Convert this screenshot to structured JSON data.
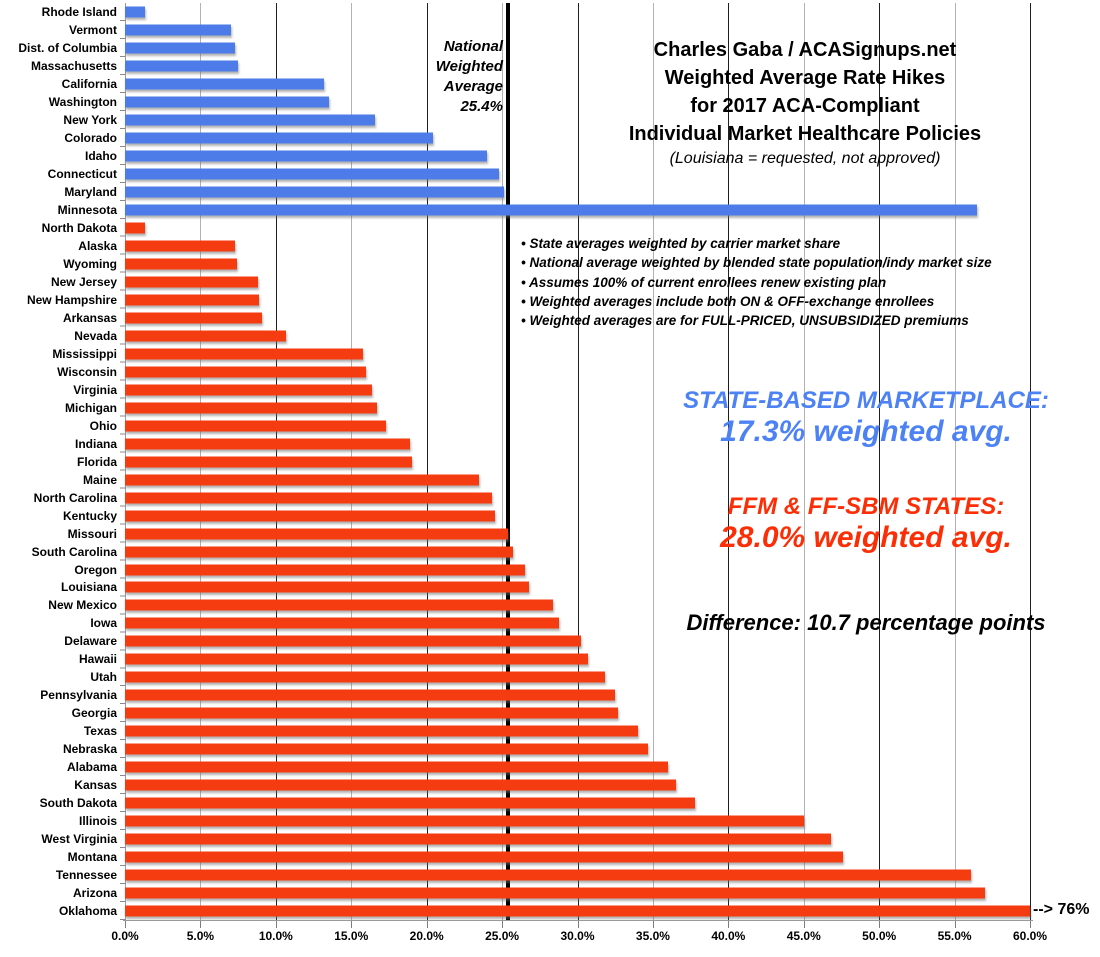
{
  "title": {
    "lines": [
      "Charles Gaba / ACASignups.net",
      "Weighted Average Rate Hikes",
      "for 2017 ACA-Compliant",
      "Individual Market Healthcare Policies"
    ],
    "subtitle": "(Louisiana = requested, not approved)"
  },
  "national_note": {
    "lines": [
      "National",
      "Weighted",
      "Average",
      "25.4%"
    ]
  },
  "notes": [
    "State averages weighted by carrier market share",
    "National average weighted by blended state population/indy market size",
    "Assumes 100% of current enrollees renew existing plan",
    "Weighted averages include both ON & OFF-exchange enrollees",
    "Weighted averages are for FULL-PRICED, UNSUBSIDIZED premiums"
  ],
  "annotations": {
    "sbm": {
      "heading": "STATE-BASED MARKETPLACE:",
      "value_line": "17.3% weighted avg.",
      "color": "#4d82f5"
    },
    "ffm": {
      "heading": "FFM & FF-SBM STATES:",
      "value_line": "28.0% weighted avg.",
      "color": "#fb2e06"
    },
    "difference": "Difference: 10.7 percentage points"
  },
  "oklahoma_callout": "--> 76%",
  "x_axis": {
    "ticks": [
      "0.0%",
      "5.0%",
      "10.0%",
      "15.0%",
      "20.0%",
      "25.0%",
      "30.0%",
      "35.0%",
      "40.0%",
      "45.0%",
      "50.0%",
      "55.0%",
      "60.0%"
    ]
  },
  "colors": {
    "sbm_bar": "#4d7ce8",
    "ffm_bar": "#f53b10",
    "national_line": "#000000",
    "minor_gridline": "#b2b2b2",
    "major_gridline": "#1f1f1f"
  },
  "chart_data": {
    "type": "bar",
    "orientation": "horizontal",
    "title": "Charles Gaba / ACASignups.net Weighted Average Rate Hikes for 2017 ACA-Compliant Individual Market Healthcare Policies",
    "xlim": [
      0,
      60
    ],
    "grid": true,
    "national_weighted_average_pct": 25.4,
    "groups": [
      {
        "id": "sbm",
        "name": "State-Based Marketplace",
        "weighted_avg_pct": 17.3
      },
      {
        "id": "ffm",
        "name": "FFM & FF-SBM States",
        "weighted_avg_pct": 28.0
      }
    ],
    "difference_percentage_points": 10.7,
    "bars": [
      {
        "state": "Rhode Island",
        "value_pct": 1.3,
        "group": "sbm"
      },
      {
        "state": "Vermont",
        "value_pct": 7.0,
        "group": "sbm"
      },
      {
        "state": "Dist. of Columbia",
        "value_pct": 7.3,
        "group": "sbm"
      },
      {
        "state": "Massachusetts",
        "value_pct": 7.5,
        "group": "sbm"
      },
      {
        "state": "California",
        "value_pct": 13.2,
        "group": "sbm"
      },
      {
        "state": "Washington",
        "value_pct": 13.5,
        "group": "sbm"
      },
      {
        "state": "New York",
        "value_pct": 16.6,
        "group": "sbm"
      },
      {
        "state": "Colorado",
        "value_pct": 20.4,
        "group": "sbm"
      },
      {
        "state": "Idaho",
        "value_pct": 24.0,
        "group": "sbm"
      },
      {
        "state": "Connecticut",
        "value_pct": 24.8,
        "group": "sbm"
      },
      {
        "state": "Maryland",
        "value_pct": 25.1,
        "group": "sbm"
      },
      {
        "state": "Minnesota",
        "value_pct": 56.5,
        "group": "sbm"
      },
      {
        "state": "North Dakota",
        "value_pct": 1.3,
        "group": "ffm"
      },
      {
        "state": "Alaska",
        "value_pct": 7.3,
        "group": "ffm"
      },
      {
        "state": "Wyoming",
        "value_pct": 7.4,
        "group": "ffm"
      },
      {
        "state": "New Jersey",
        "value_pct": 8.8,
        "group": "ffm"
      },
      {
        "state": "New Hampshire",
        "value_pct": 8.9,
        "group": "ffm"
      },
      {
        "state": "Arkansas",
        "value_pct": 9.1,
        "group": "ffm"
      },
      {
        "state": "Nevada",
        "value_pct": 10.7,
        "group": "ffm"
      },
      {
        "state": "Mississippi",
        "value_pct": 15.8,
        "group": "ffm"
      },
      {
        "state": "Wisconsin",
        "value_pct": 16.0,
        "group": "ffm"
      },
      {
        "state": "Virginia",
        "value_pct": 16.4,
        "group": "ffm"
      },
      {
        "state": "Michigan",
        "value_pct": 16.7,
        "group": "ffm"
      },
      {
        "state": "Ohio",
        "value_pct": 17.3,
        "group": "ffm"
      },
      {
        "state": "Indiana",
        "value_pct": 18.9,
        "group": "ffm"
      },
      {
        "state": "Florida",
        "value_pct": 19.0,
        "group": "ffm"
      },
      {
        "state": "Maine",
        "value_pct": 23.5,
        "group": "ffm"
      },
      {
        "state": "North Carolina",
        "value_pct": 24.3,
        "group": "ffm"
      },
      {
        "state": "Kentucky",
        "value_pct": 24.5,
        "group": "ffm"
      },
      {
        "state": "Missouri",
        "value_pct": 25.4,
        "group": "ffm"
      },
      {
        "state": "South Carolina",
        "value_pct": 25.7,
        "group": "ffm"
      },
      {
        "state": "Oregon",
        "value_pct": 26.5,
        "group": "ffm"
      },
      {
        "state": "Louisiana",
        "value_pct": 26.8,
        "group": "ffm"
      },
      {
        "state": "New Mexico",
        "value_pct": 28.4,
        "group": "ffm"
      },
      {
        "state": "Iowa",
        "value_pct": 28.8,
        "group": "ffm"
      },
      {
        "state": "Delaware",
        "value_pct": 30.2,
        "group": "ffm"
      },
      {
        "state": "Hawaii",
        "value_pct": 30.7,
        "group": "ffm"
      },
      {
        "state": "Utah",
        "value_pct": 31.8,
        "group": "ffm"
      },
      {
        "state": "Pennsylvania",
        "value_pct": 32.5,
        "group": "ffm"
      },
      {
        "state": "Georgia",
        "value_pct": 32.7,
        "group": "ffm"
      },
      {
        "state": "Texas",
        "value_pct": 34.0,
        "group": "ffm"
      },
      {
        "state": "Nebraska",
        "value_pct": 34.7,
        "group": "ffm"
      },
      {
        "state": "Alabama",
        "value_pct": 36.0,
        "group": "ffm"
      },
      {
        "state": "Kansas",
        "value_pct": 36.5,
        "group": "ffm"
      },
      {
        "state": "South Dakota",
        "value_pct": 37.8,
        "group": "ffm"
      },
      {
        "state": "Illinois",
        "value_pct": 45.0,
        "group": "ffm"
      },
      {
        "state": "West Virginia",
        "value_pct": 46.8,
        "group": "ffm"
      },
      {
        "state": "Montana",
        "value_pct": 47.6,
        "group": "ffm"
      },
      {
        "state": "Tennessee",
        "value_pct": 56.1,
        "group": "ffm"
      },
      {
        "state": "Arizona",
        "value_pct": 57.0,
        "group": "ffm"
      },
      {
        "state": "Oklahoma",
        "value_pct": 76.0,
        "group": "ffm",
        "clipped_at_pct": 60,
        "callout": "--> 76%"
      }
    ]
  }
}
